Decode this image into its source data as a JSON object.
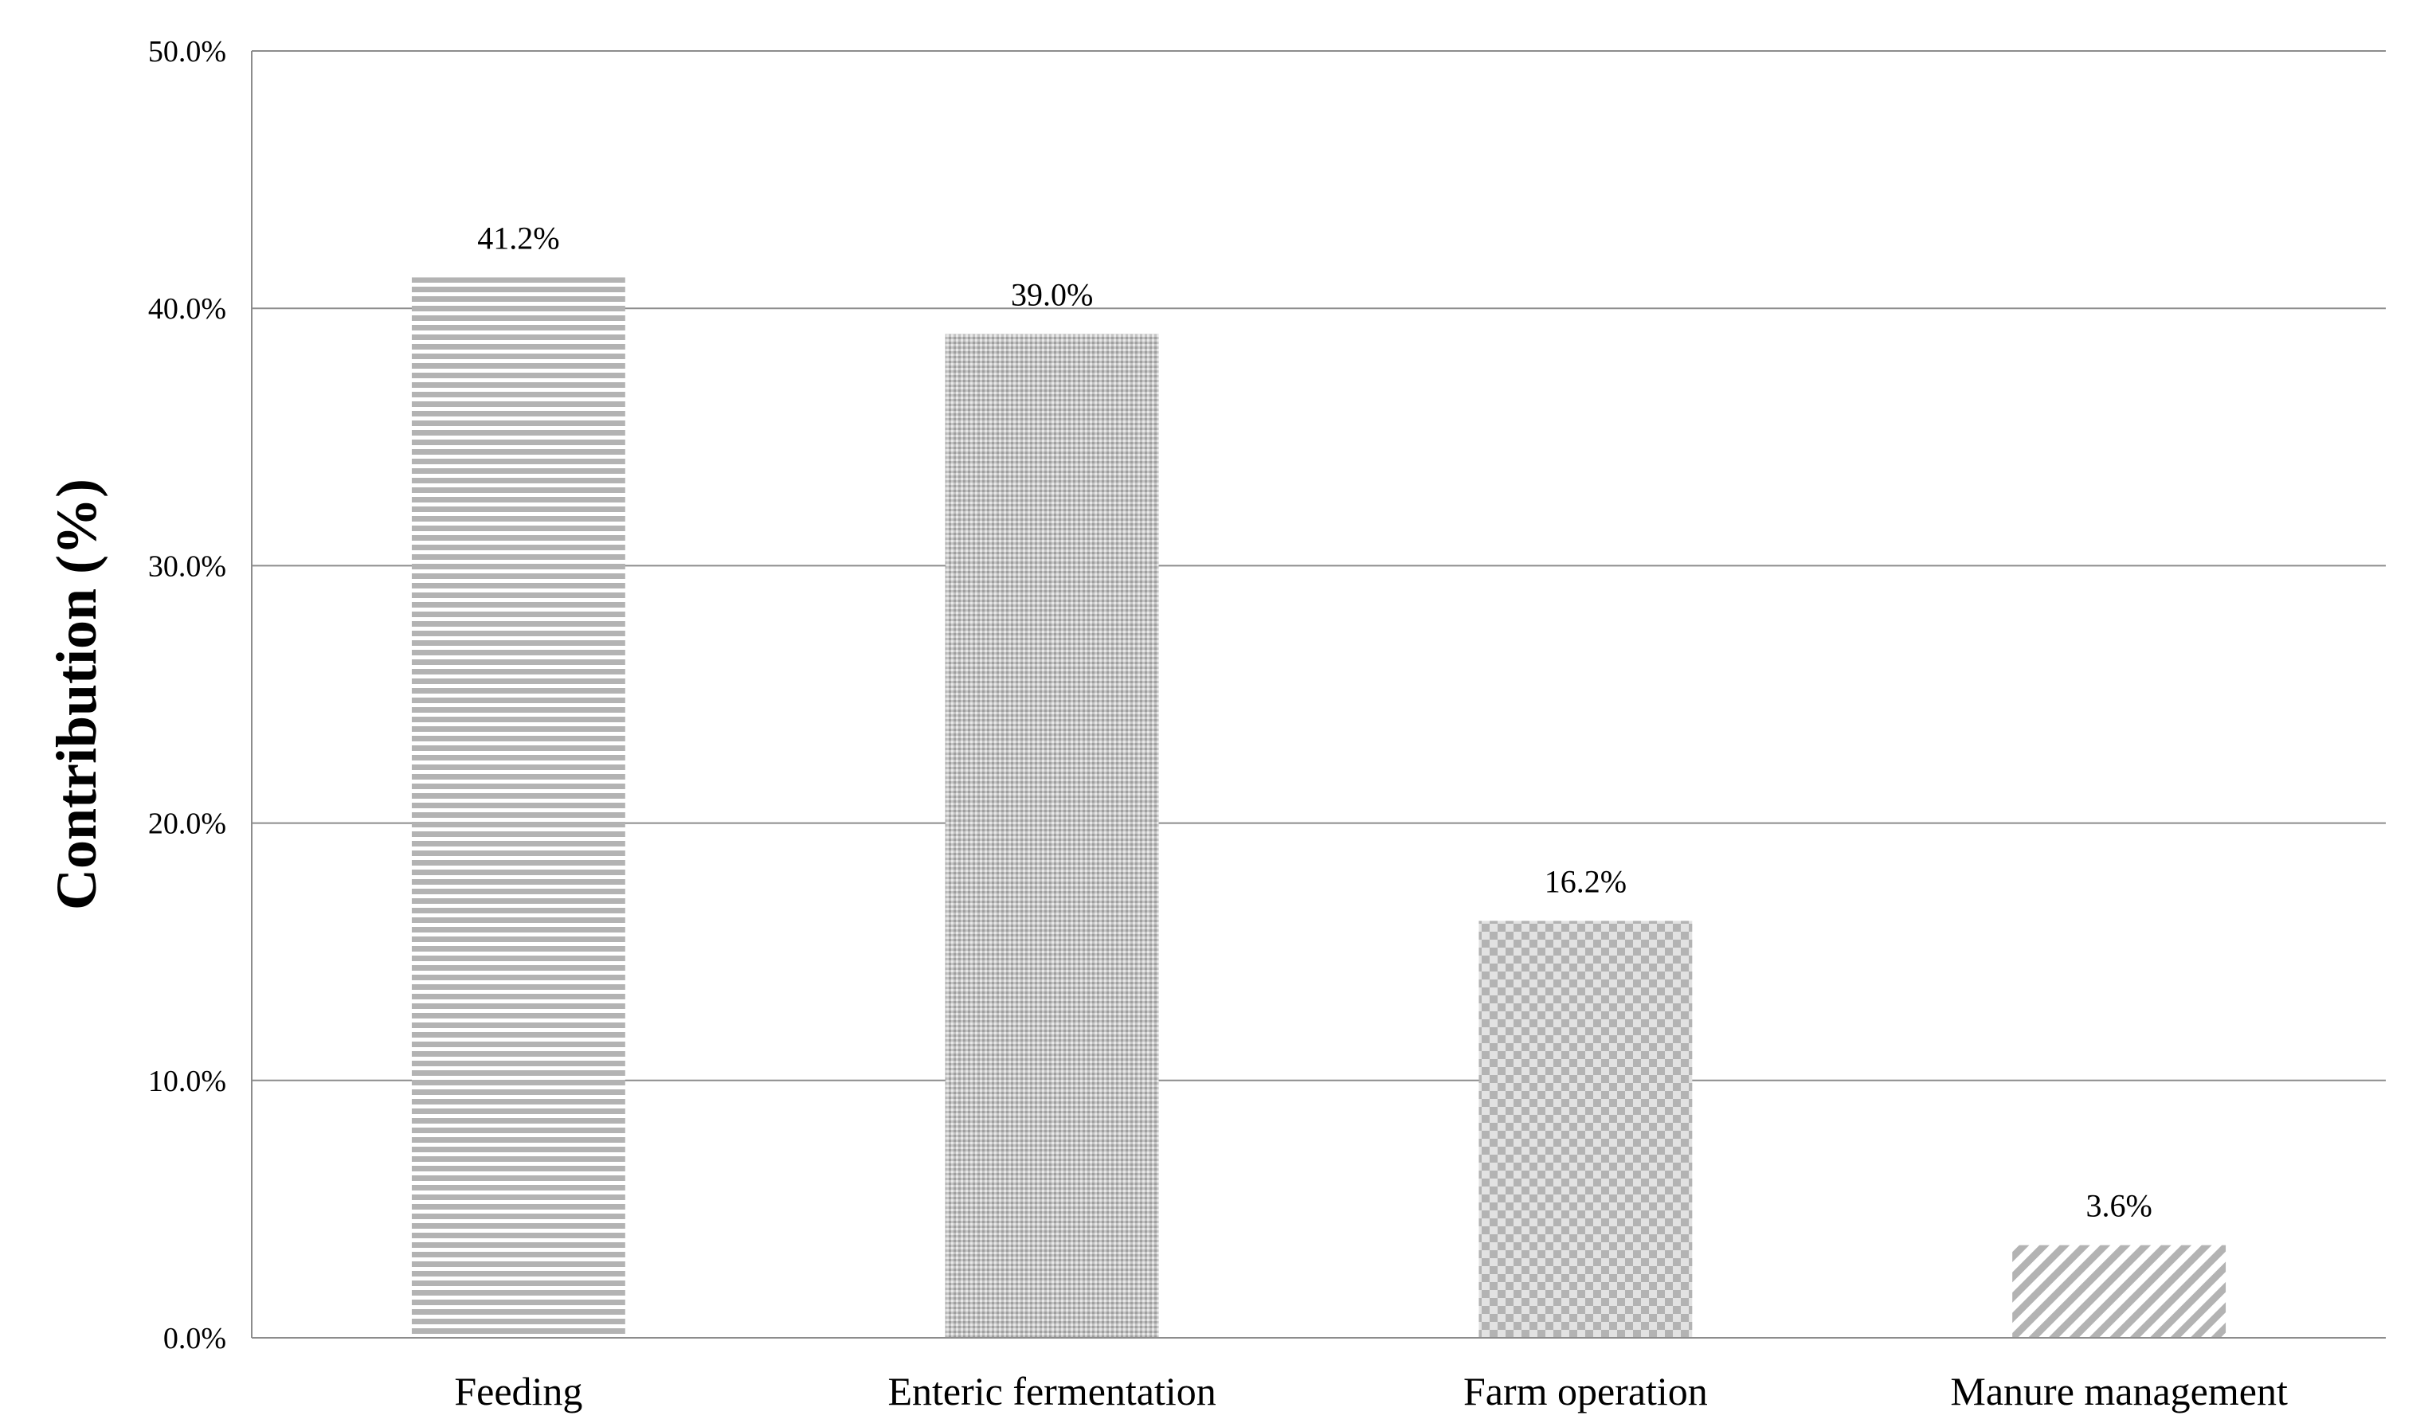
{
  "chart_data": {
    "type": "bar",
    "title": "",
    "xlabel": "",
    "ylabel": "Contribution (%)",
    "categories": [
      "Feeding",
      "Enteric fermentation",
      "Farm operation",
      "Manure management"
    ],
    "values": [
      41.2,
      39.0,
      16.2,
      3.6
    ],
    "data_labels": [
      "41.2%",
      "39.0%",
      "16.2%",
      "3.6%"
    ],
    "ylim": [
      0,
      50
    ],
    "yticks": [
      0,
      10,
      20,
      30,
      40,
      50
    ],
    "ytick_labels": [
      "0.0%",
      "10.0%",
      "20.0%",
      "30.0%",
      "40.0%",
      "50.0%"
    ],
    "grid": true,
    "legend": "none",
    "bar_patterns": [
      "horizontal-stripes",
      "dots",
      "checker",
      "diagonal-stripes"
    ],
    "colors": {
      "bar": "#b3b3b3",
      "grid": "#8c8c8c",
      "axis": "#8c8c8c",
      "text": "#000000"
    }
  }
}
